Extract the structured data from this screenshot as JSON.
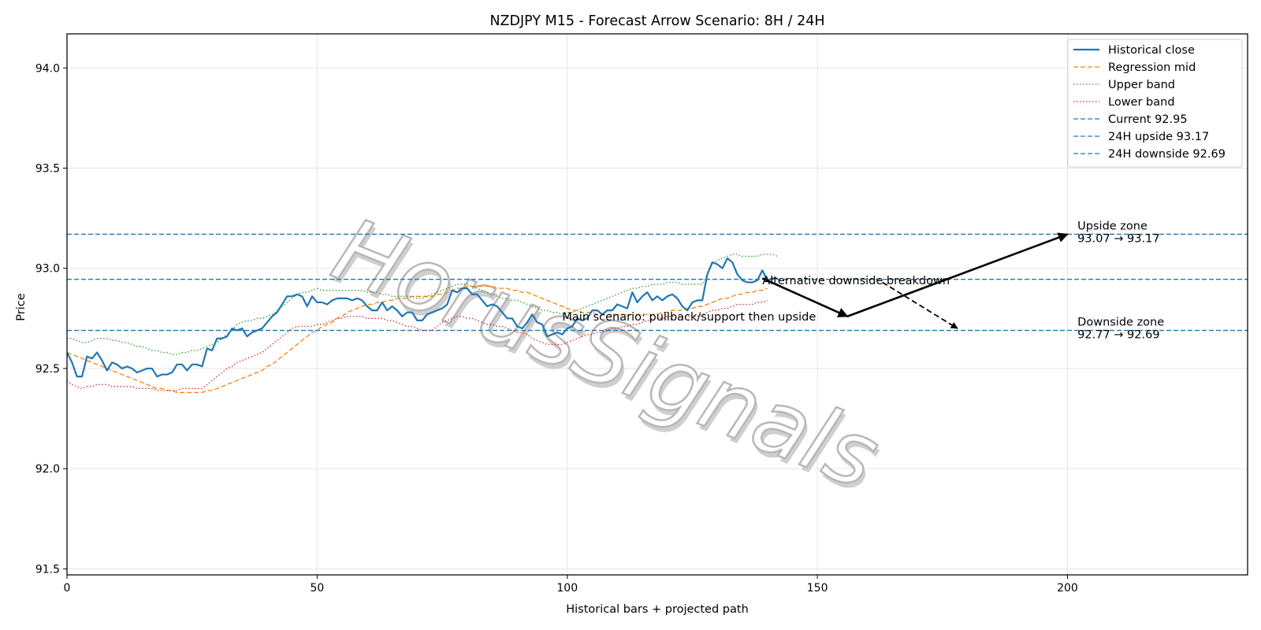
{
  "watermark": "HorusSignals",
  "chart_data": {
    "type": "line",
    "title": "NZDJPY M15 - Forecast Arrow Scenario: 8H / 24H",
    "xlabel": "Historical bars + projected path",
    "ylabel": "Price",
    "xlim": [
      0,
      236
    ],
    "ylim": [
      91.47,
      94.17
    ],
    "xticks": [
      0,
      50,
      100,
      150,
      200
    ],
    "yticks": [
      91.5,
      92.0,
      92.5,
      93.0,
      93.5,
      94.0
    ],
    "xtick_labels": [
      "0",
      "50",
      "100",
      "150",
      "200"
    ],
    "ytick_labels": [
      "91.5",
      "92.0",
      "92.5",
      "93.0",
      "93.5",
      "94.0"
    ],
    "grid": true,
    "legend_position": "top-right",
    "colors": {
      "historical": "#1f77b4",
      "regression": "#ff7f0e",
      "upper": "#2ca02c",
      "lower": "#d62728",
      "level": "#1f77b4",
      "arrow": "#000000"
    },
    "series": [
      {
        "name": "Historical close",
        "style": "solid",
        "x_start": 0,
        "values": [
          92.58,
          92.53,
          92.46,
          92.46,
          92.56,
          92.55,
          92.58,
          92.54,
          92.49,
          92.53,
          92.52,
          92.5,
          92.51,
          92.5,
          92.48,
          92.49,
          92.5,
          92.5,
          92.46,
          92.47,
          92.47,
          92.48,
          92.52,
          92.52,
          92.49,
          92.52,
          92.52,
          92.51,
          92.6,
          92.59,
          92.65,
          92.65,
          92.66,
          92.7,
          92.69,
          92.7,
          92.66,
          92.68,
          92.69,
          92.7,
          92.73,
          92.76,
          92.78,
          92.82,
          92.86,
          92.86,
          92.87,
          92.86,
          92.81,
          92.86,
          92.83,
          92.83,
          92.82,
          92.84,
          92.85,
          92.85,
          92.85,
          92.84,
          92.85,
          92.84,
          92.81,
          92.79,
          92.79,
          92.83,
          92.79,
          92.81,
          92.79,
          92.76,
          92.78,
          92.78,
          92.74,
          92.74,
          92.77,
          92.78,
          92.79,
          92.8,
          92.82,
          92.89,
          92.88,
          92.9,
          92.9,
          92.87,
          92.87,
          92.84,
          92.81,
          92.82,
          92.81,
          92.78,
          92.75,
          92.75,
          92.71,
          92.7,
          92.73,
          92.77,
          92.73,
          92.72,
          92.66,
          92.67,
          92.68,
          92.67,
          92.7,
          92.71,
          92.75,
          92.74,
          92.75,
          92.79,
          92.79,
          92.77,
          92.79,
          92.79,
          92.82,
          92.81,
          92.8,
          92.88,
          92.83,
          92.86,
          92.88,
          92.84,
          92.86,
          92.84,
          92.86,
          92.87,
          92.85,
          92.81,
          92.79,
          92.83,
          92.84,
          92.84,
          92.97,
          93.03,
          93.02,
          93.0,
          93.05,
          93.03,
          92.97,
          92.94,
          92.93,
          92.93,
          92.94,
          92.99,
          92.94,
          92.95,
          92.95
        ]
      },
      {
        "name": "Regression mid",
        "style": "dashed",
        "x_start": 0,
        "values": [
          92.58,
          92.57,
          92.56,
          92.55,
          92.54,
          92.53,
          92.52,
          92.51,
          92.5,
          92.49,
          92.48,
          92.47,
          92.46,
          92.45,
          92.44,
          92.43,
          92.42,
          92.41,
          92.4,
          92.4,
          92.39,
          92.39,
          92.38,
          92.38,
          92.38,
          92.38,
          92.38,
          92.38,
          92.39,
          92.39,
          92.4,
          92.41,
          92.42,
          92.43,
          92.44,
          92.45,
          92.46,
          92.47,
          92.48,
          92.49,
          92.51,
          92.52,
          92.54,
          92.56,
          92.58,
          92.6,
          92.62,
          92.64,
          92.66,
          92.68,
          92.69,
          92.71,
          92.72,
          92.73,
          92.75,
          92.76,
          92.78,
          92.79,
          92.8,
          92.81,
          92.82,
          92.82,
          92.83,
          92.83,
          92.84,
          92.84,
          92.85,
          92.85,
          92.85,
          92.86,
          92.86,
          92.86,
          92.86,
          92.86,
          92.87,
          92.87,
          92.88,
          92.89,
          92.9,
          92.9,
          92.91,
          92.91,
          92.91,
          92.91,
          92.91,
          92.91,
          92.9,
          92.9,
          92.9,
          92.89,
          92.89,
          92.88,
          92.88,
          92.87,
          92.86,
          92.85,
          92.84,
          92.83,
          92.82,
          92.81,
          92.8,
          92.79,
          92.79,
          92.78,
          92.78,
          92.78,
          92.77,
          92.77,
          92.77,
          92.77,
          92.77,
          92.77,
          92.77,
          92.77,
          92.77,
          92.77,
          92.77,
          92.77,
          92.77,
          92.78,
          92.78,
          92.79,
          92.79,
          92.79,
          92.8,
          92.8,
          92.81,
          92.81,
          92.82,
          92.83,
          92.84,
          92.85,
          92.85,
          92.86,
          92.87,
          92.87,
          92.88,
          92.88,
          92.89,
          92.89,
          92.9
        ]
      },
      {
        "name": "Upper band",
        "style": "dotted",
        "x_start": 0,
        "values": [
          92.65,
          92.65,
          92.64,
          92.63,
          92.63,
          92.64,
          92.65,
          92.65,
          92.65,
          92.64,
          92.64,
          92.63,
          92.63,
          92.62,
          92.61,
          92.61,
          92.6,
          92.59,
          92.59,
          92.58,
          92.58,
          92.57,
          92.57,
          92.58,
          92.58,
          92.59,
          92.59,
          92.6,
          92.61,
          92.62,
          92.63,
          92.65,
          92.67,
          92.69,
          92.72,
          92.73,
          92.74,
          92.74,
          92.75,
          92.75,
          92.76,
          92.77,
          92.79,
          92.81,
          92.83,
          92.85,
          92.87,
          92.88,
          92.88,
          92.89,
          92.9,
          92.89,
          92.89,
          92.89,
          92.89,
          92.89,
          92.89,
          92.89,
          92.89,
          92.89,
          92.88,
          92.88,
          92.88,
          92.87,
          92.87,
          92.86,
          92.86,
          92.86,
          92.86,
          92.86,
          92.85,
          92.85,
          92.86,
          92.87,
          92.88,
          92.89,
          92.9,
          92.91,
          92.92,
          92.92,
          92.92,
          92.91,
          92.9,
          92.89,
          92.88,
          92.87,
          92.86,
          92.85,
          92.85,
          92.84,
          92.84,
          92.83,
          92.82,
          92.81,
          92.8,
          92.79,
          92.79,
          92.78,
          92.78,
          92.77,
          92.78,
          92.78,
          92.79,
          92.8,
          92.81,
          92.82,
          92.83,
          92.84,
          92.85,
          92.86,
          92.87,
          92.88,
          92.89,
          92.9,
          92.9,
          92.91,
          92.91,
          92.92,
          92.92,
          92.92,
          92.93,
          92.93,
          92.93,
          92.92,
          92.92,
          92.92,
          92.92,
          92.92,
          92.97,
          93.02,
          93.04,
          93.05,
          93.06,
          93.07,
          93.07,
          93.06,
          93.06,
          93.06,
          93.06,
          93.07,
          93.07,
          93.07,
          93.06
        ]
      },
      {
        "name": "Lower band",
        "style": "dotted",
        "x_start": 0,
        "values": [
          92.44,
          92.42,
          92.41,
          92.4,
          92.41,
          92.41,
          92.42,
          92.42,
          92.42,
          92.41,
          92.41,
          92.41,
          92.41,
          92.41,
          92.4,
          92.4,
          92.4,
          92.4,
          92.39,
          92.39,
          92.39,
          92.39,
          92.39,
          92.4,
          92.4,
          92.4,
          92.4,
          92.4,
          92.42,
          92.44,
          92.46,
          92.48,
          92.5,
          92.51,
          92.53,
          92.54,
          92.55,
          92.56,
          92.57,
          92.58,
          92.6,
          92.62,
          92.64,
          92.66,
          92.68,
          92.7,
          92.71,
          92.71,
          92.71,
          92.71,
          92.72,
          92.72,
          92.73,
          92.74,
          92.75,
          92.75,
          92.76,
          92.76,
          92.76,
          92.76,
          92.75,
          92.75,
          92.75,
          92.75,
          92.74,
          92.74,
          92.73,
          92.72,
          92.71,
          92.71,
          92.7,
          92.69,
          92.69,
          92.69,
          92.71,
          92.73,
          92.74,
          92.75,
          92.76,
          92.76,
          92.75,
          92.75,
          92.74,
          92.73,
          92.72,
          92.72,
          92.71,
          92.71,
          92.7,
          92.69,
          92.68,
          92.68,
          92.67,
          92.65,
          92.64,
          92.63,
          92.62,
          92.62,
          92.62,
          92.62,
          92.63,
          92.64,
          92.65,
          92.66,
          92.67,
          92.67,
          92.68,
          92.68,
          92.69,
          92.7,
          92.7,
          92.71,
          92.71,
          92.72,
          92.72,
          92.73,
          92.74,
          92.74,
          92.75,
          92.75,
          92.76,
          92.76,
          92.76,
          92.76,
          92.76,
          92.76,
          92.76,
          92.77,
          92.78,
          92.79,
          92.79,
          92.8,
          92.8,
          92.81,
          92.82,
          92.82,
          92.82,
          92.82,
          92.83,
          92.83,
          92.84
        ]
      }
    ],
    "hlines": [
      {
        "name": "Current 92.95",
        "y": 92.945
      },
      {
        "name": "24H upside 93.17",
        "y": 93.17
      },
      {
        "name": "24H downside 92.69",
        "y": 92.69
      }
    ],
    "arrows": [
      {
        "id": "main-leg-1",
        "style": "solid",
        "from": [
          139,
          92.95
        ],
        "to": [
          156,
          92.76
        ]
      },
      {
        "id": "main-leg-2",
        "style": "solid",
        "from": [
          156,
          92.76
        ],
        "to": [
          200,
          93.17
        ]
      },
      {
        "id": "alt-leg",
        "style": "dashed",
        "from": [
          163,
          92.93
        ],
        "to": [
          178,
          92.7
        ]
      }
    ],
    "annotations": [
      {
        "id": "upside-zone",
        "lines": [
          "Upside zone",
          "93.07 → 93.17"
        ],
        "x": 202,
        "y": 93.15
      },
      {
        "id": "downside-zone",
        "lines": [
          "Downside zone",
          "92.77 → 92.69"
        ],
        "x": 202,
        "y": 92.67
      },
      {
        "id": "alt-label",
        "lines": [
          "Alternative downside breakdown"
        ],
        "x": 139,
        "y": 92.94
      },
      {
        "id": "main-label",
        "lines": [
          "Main scenario: pullback/support then upside"
        ],
        "x": 99,
        "y": 92.76
      }
    ]
  }
}
